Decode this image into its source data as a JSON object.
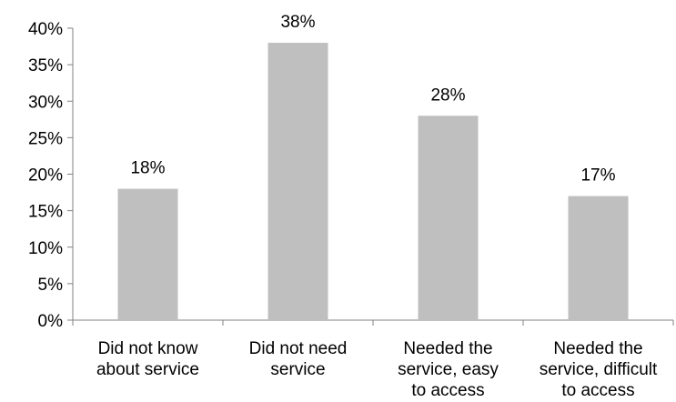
{
  "chart_data": {
    "type": "bar",
    "categories": [
      [
        "Did not know",
        "about service"
      ],
      [
        "Did not need",
        "service"
      ],
      [
        "Needed the",
        "service, easy",
        "to access"
      ],
      [
        "Needed the",
        "service, difficult",
        "to access"
      ]
    ],
    "values": [
      18,
      38,
      28,
      17
    ],
    "value_labels": [
      "18%",
      "38%",
      "28%",
      "17%"
    ],
    "ylim": [
      0,
      40
    ],
    "yticks": [
      0,
      5,
      10,
      15,
      20,
      25,
      30,
      35,
      40
    ],
    "ytick_labels": [
      "0%",
      "5%",
      "10%",
      "15%",
      "20%",
      "25%",
      "30%",
      "35%",
      "40%"
    ],
    "title": "",
    "xlabel": "",
    "ylabel": "",
    "grid": false,
    "legend": "none",
    "colors": {
      "bar": "#bfbfbf",
      "axis": "#808080",
      "text": "#000000"
    }
  }
}
